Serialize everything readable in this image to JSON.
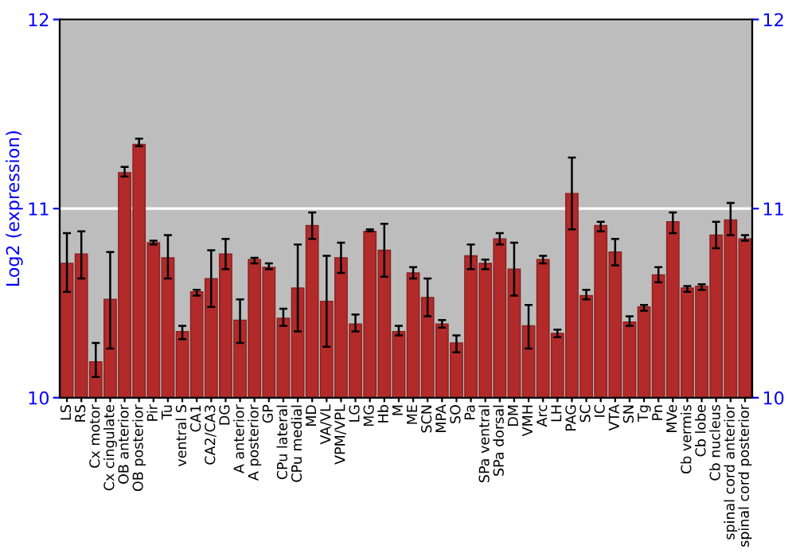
{
  "chart_data": {
    "type": "bar",
    "ylabel": "Log2 (expression)",
    "categories": [
      "LS",
      "RS",
      "Cx motor",
      "Cx cingulate",
      "OB anterior",
      "OB posterior",
      "Pir",
      "Tu",
      "ventral S",
      "CA1",
      "CA2/CA3",
      "DG",
      "A anterior",
      "A posterior",
      "GP",
      "CPu lateral",
      "CPu medial",
      "MD",
      "VA/VL",
      "VPM/VPL",
      "LG",
      "MG",
      "Hb",
      "M",
      "ME",
      "SCN",
      "MPA",
      "SO",
      "Pa",
      "SPa ventral",
      "SPa dorsal",
      "DM",
      "VMH",
      "Arc",
      "LH",
      "PAG",
      "SC",
      "IC",
      "VTA",
      "SN",
      "Tg",
      "Pn",
      "MVe",
      "Cb vermis",
      "Cb lobe",
      "Cb nucleus",
      "spinal cord anterior",
      "spinal cord posterior"
    ],
    "values": [
      10.71,
      10.76,
      10.19,
      10.52,
      11.19,
      11.34,
      10.82,
      10.74,
      10.35,
      10.56,
      10.63,
      10.76,
      10.41,
      10.73,
      10.69,
      10.42,
      10.58,
      10.91,
      10.51,
      10.74,
      10.39,
      10.88,
      10.78,
      10.35,
      10.66,
      10.53,
      10.39,
      10.29,
      10.75,
      10.71,
      10.84,
      10.68,
      10.38,
      10.73,
      10.34,
      11.08,
      10.54,
      10.91,
      10.77,
      10.4,
      10.48,
      10.65,
      10.93,
      10.58,
      10.59,
      10.86,
      10.94,
      10.84
    ],
    "errors": [
      [
        10.56,
        10.87
      ],
      [
        10.63,
        10.88
      ],
      [
        10.11,
        10.29
      ],
      [
        10.26,
        10.77
      ],
      [
        11.17,
        11.22
      ],
      [
        11.33,
        11.37
      ],
      [
        10.81,
        10.83
      ],
      [
        10.63,
        10.86
      ],
      [
        10.31,
        10.38
      ],
      [
        10.54,
        10.57
      ],
      [
        10.48,
        10.78
      ],
      [
        10.68,
        10.84
      ],
      [
        10.29,
        10.52
      ],
      [
        10.71,
        10.74
      ],
      [
        10.68,
        10.71
      ],
      [
        10.38,
        10.47
      ],
      [
        10.35,
        10.81
      ],
      [
        10.84,
        10.98
      ],
      [
        10.27,
        10.75
      ],
      [
        10.66,
        10.82
      ],
      [
        10.35,
        10.44
      ],
      [
        10.88,
        10.89
      ],
      [
        10.64,
        10.92
      ],
      [
        10.33,
        10.38
      ],
      [
        10.63,
        10.69
      ],
      [
        10.43,
        10.63
      ],
      [
        10.37,
        10.41
      ],
      [
        10.24,
        10.33
      ],
      [
        10.68,
        10.81
      ],
      [
        10.68,
        10.73
      ],
      [
        10.81,
        10.87
      ],
      [
        10.54,
        10.82
      ],
      [
        10.26,
        10.49
      ],
      [
        10.71,
        10.75
      ],
      [
        10.32,
        10.36
      ],
      [
        10.89,
        11.27
      ],
      [
        10.52,
        10.57
      ],
      [
        10.88,
        10.93
      ],
      [
        10.7,
        10.84
      ],
      [
        10.38,
        10.43
      ],
      [
        10.46,
        10.49
      ],
      [
        10.61,
        10.69
      ],
      [
        10.87,
        10.98
      ],
      [
        10.56,
        10.59
      ],
      [
        10.57,
        10.6
      ],
      [
        10.79,
        10.93
      ],
      [
        10.86,
        11.03
      ],
      [
        10.83,
        10.86
      ]
    ],
    "color": "#b22a2a",
    "ylim": [
      10,
      12
    ],
    "yticks": [
      10,
      11,
      12
    ],
    "y2lim": [
      10,
      12
    ],
    "y2ticks": [
      10,
      11,
      12
    ],
    "grid": "y",
    "legend": false
  }
}
